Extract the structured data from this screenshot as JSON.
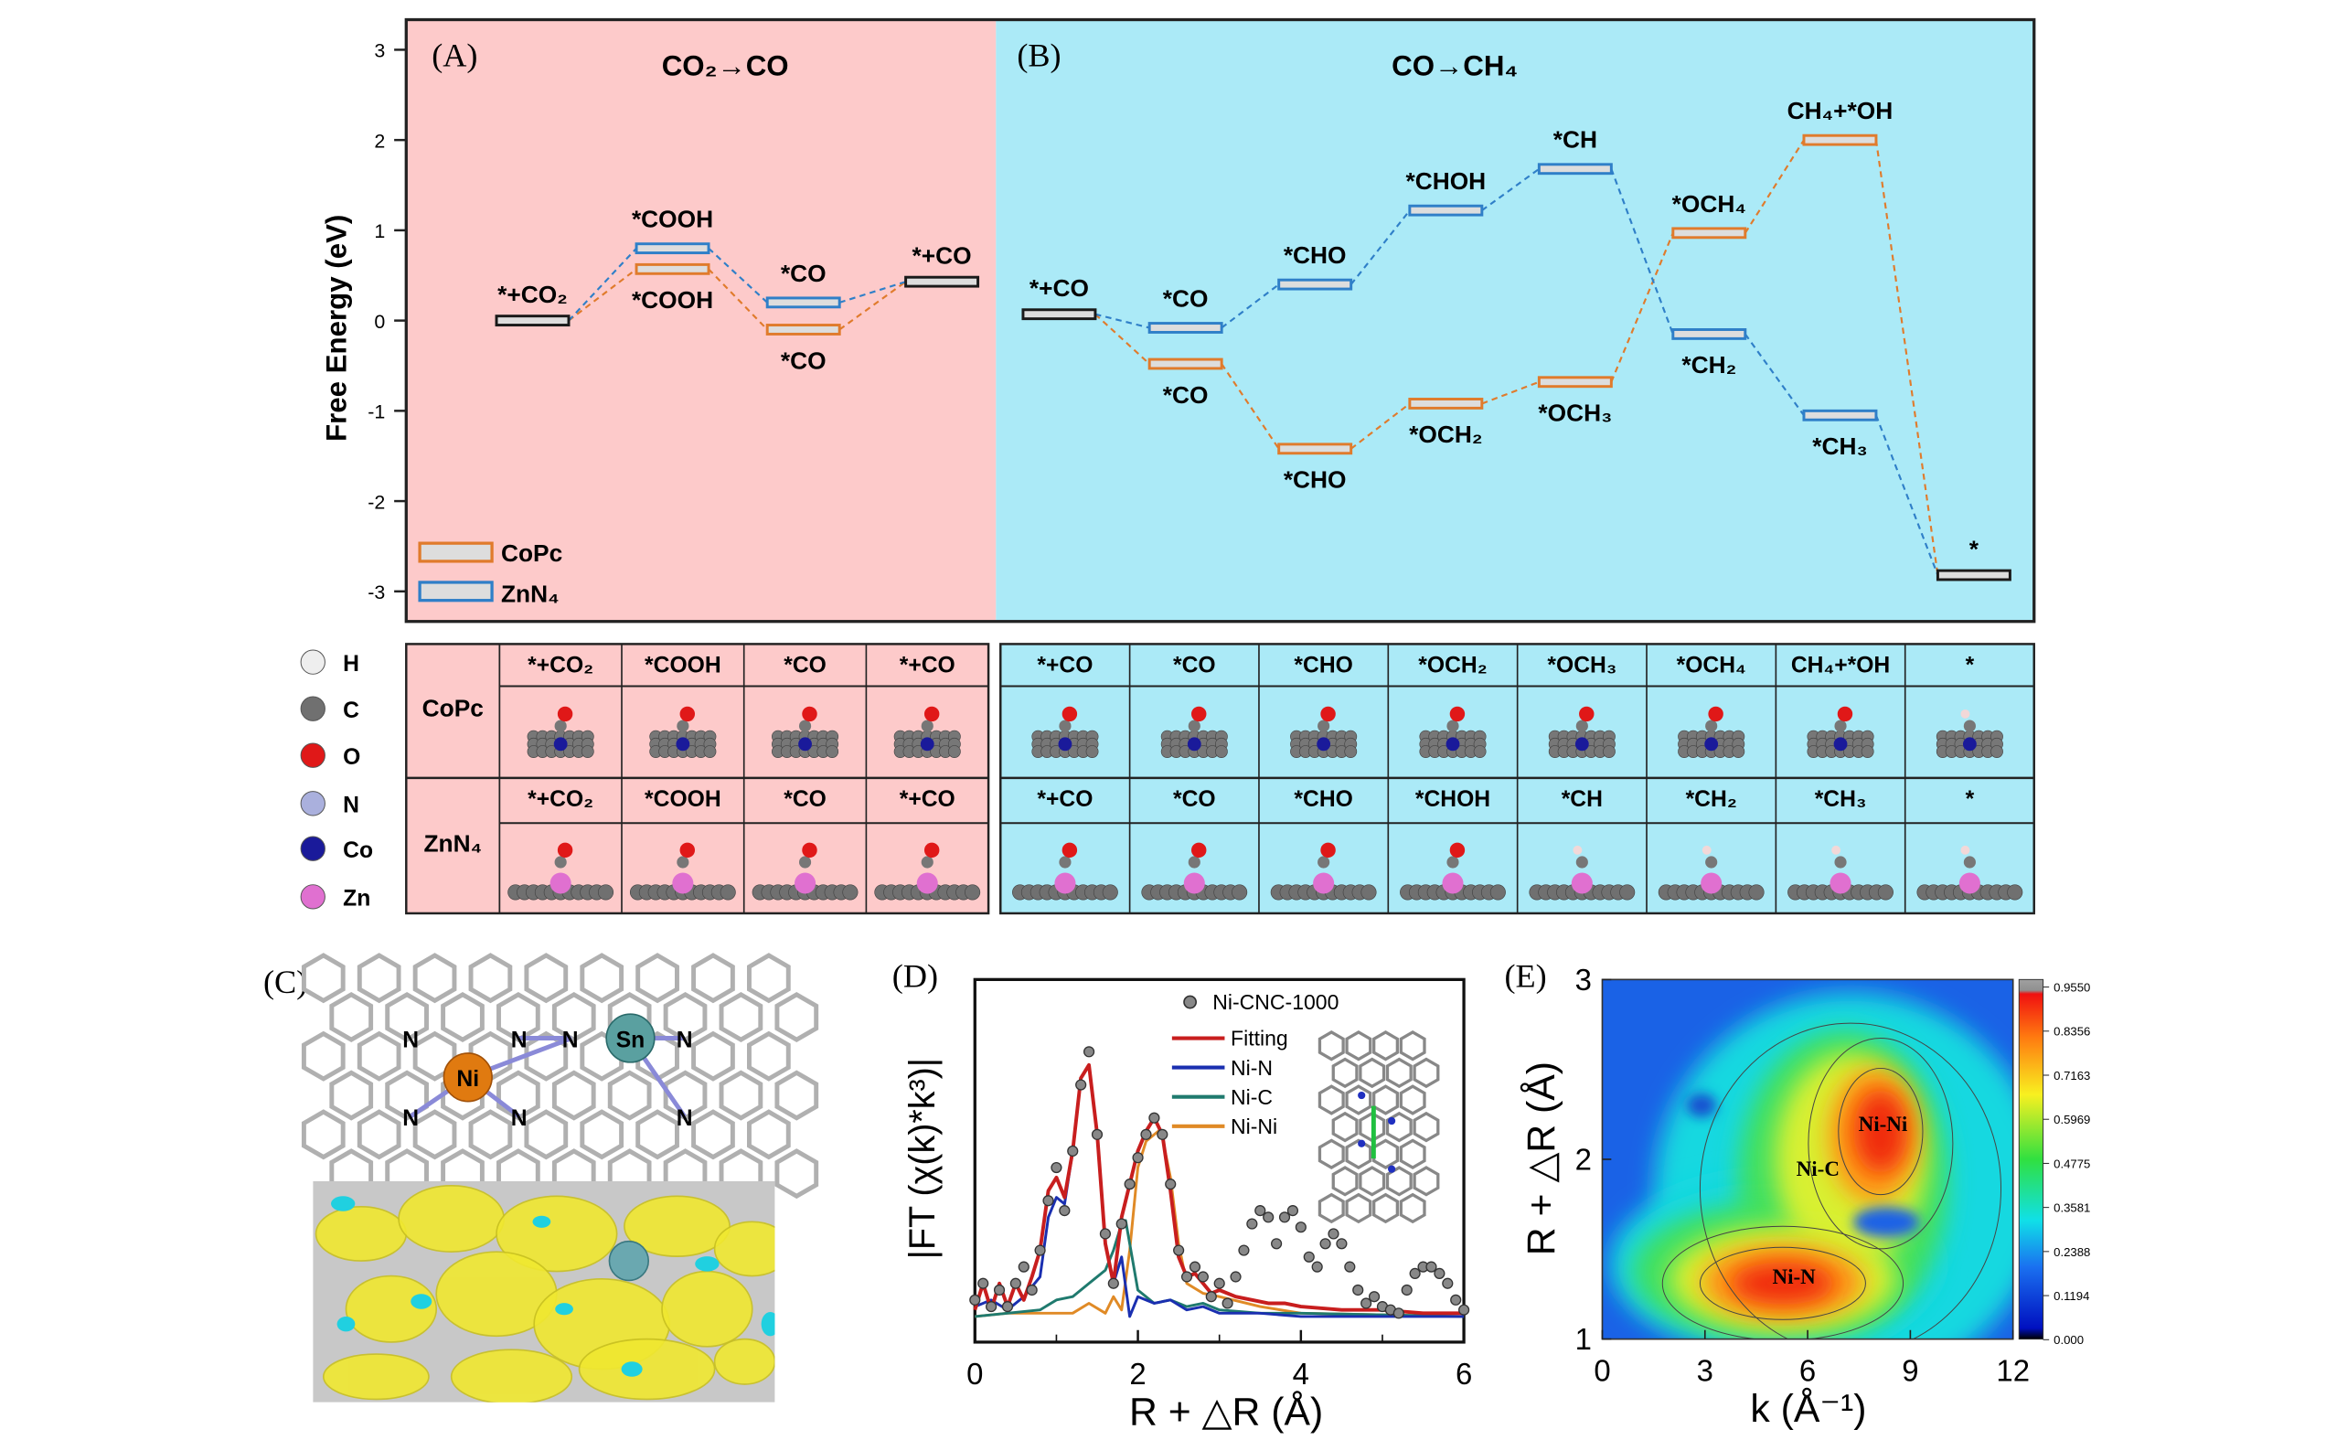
{
  "energy_diagram": {
    "ylabel": "Free Energy (eV)",
    "yticks": [
      -3,
      -2,
      -1,
      0,
      1,
      2,
      3
    ],
    "ylim": [
      -3.33,
      3.33
    ],
    "panels": [
      {
        "label": "(A)",
        "title": "CO₂→CO",
        "bg": "#fdcaca"
      },
      {
        "label": "(B)",
        "title": "CO→CH₄",
        "bg": "#abeaf7"
      }
    ],
    "legend": [
      {
        "name": "CoPc",
        "color": "#e07b2c"
      },
      {
        "name": "ZnN₄",
        "color": "#2f7fc8"
      }
    ],
    "shared_color": "#1a1a1a",
    "series": [
      {
        "name": "CoPc",
        "color": "#e07b2c",
        "labels": [
          "*+CO₂",
          "*COOH",
          "*CO",
          "*+CO",
          "*+CO",
          "*CO",
          "*CHO",
          "*OCH₂",
          "*OCH₃",
          "*OCH₄",
          "CH₄+*OH",
          "*"
        ],
        "values": [
          0.0,
          0.57,
          -0.1,
          0.43,
          0.07,
          -0.48,
          -1.42,
          -0.92,
          -0.68,
          0.97,
          2.0,
          -2.82
        ]
      },
      {
        "name": "ZnN₄",
        "color": "#2f7fc8",
        "labels": [
          "*+CO₂",
          "*COOH",
          "*CO",
          "*+CO",
          "*+CO",
          "*CO",
          "*CHO",
          "*CHOH",
          "*CH",
          "*CH₂",
          "*CH₃",
          "*"
        ],
        "values": [
          0.0,
          0.8,
          0.2,
          0.43,
          0.07,
          -0.08,
          0.4,
          1.22,
          1.68,
          -0.15,
          -1.05,
          -2.82
        ]
      }
    ]
  },
  "adsorption_table": {
    "atom_legend": [
      {
        "symbol": "H",
        "color": "#eeeeee"
      },
      {
        "symbol": "C",
        "color": "#707070"
      },
      {
        "symbol": "O",
        "color": "#e01818"
      },
      {
        "symbol": "N",
        "color": "#aab0dd"
      },
      {
        "symbol": "Co",
        "color": "#1a1a9a"
      },
      {
        "symbol": "Zn",
        "color": "#e070d0"
      }
    ],
    "left": {
      "rows": [
        {
          "catalyst": "CoPc",
          "steps": [
            "*+CO₂",
            "*COOH",
            "*CO",
            "*+CO"
          ]
        },
        {
          "catalyst": "ZnN₄",
          "steps": [
            "*+CO₂",
            "*COOH",
            "*CO",
            "*+CO"
          ]
        }
      ]
    },
    "right": {
      "rows": [
        {
          "steps": [
            "*+CO",
            "*CO",
            "*CHO",
            "*OCH₂",
            "*OCH₃",
            "*OCH₄",
            "CH₄+*OH",
            "*"
          ]
        },
        {
          "steps": [
            "*+CO",
            "*CO",
            "*CHO",
            "*CHOH",
            "*CH",
            "*CH₂",
            "*CH₃",
            "*"
          ]
        }
      ]
    }
  },
  "panel_c": {
    "label": "(C)",
    "atoms": {
      "ni": "Ni",
      "sn": "Sn",
      "n": "N"
    }
  },
  "chart_data": [
    {
      "type": "line",
      "panel": "D",
      "label": "(D)",
      "xlabel": "R + △R (Å)",
      "ylabel": "|FT (χ(k)*k³)|",
      "xlim": [
        0,
        6
      ],
      "xticks": [
        0,
        2,
        4,
        6
      ],
      "grid": false,
      "legend_position": "top-right",
      "experimental": {
        "name": "Ni-CNC-1000",
        "x": [
          0,
          0.1,
          0.2,
          0.3,
          0.4,
          0.5,
          0.6,
          0.7,
          0.8,
          0.9,
          1.0,
          1.1,
          1.2,
          1.3,
          1.4,
          1.5,
          1.6,
          1.7,
          1.8,
          1.9,
          2.0,
          2.1,
          2.2,
          2.3,
          2.4,
          2.5,
          2.6,
          2.7,
          2.8,
          2.9,
          3.0,
          3.1,
          3.2,
          3.3,
          3.4,
          3.5,
          3.6,
          3.7,
          3.8,
          3.9,
          4.0,
          4.1,
          4.2,
          4.3,
          4.4,
          4.5,
          4.6,
          4.7,
          4.8,
          4.9,
          5.0,
          5.1,
          5.2,
          5.3,
          5.4,
          5.5,
          5.6,
          5.7,
          5.8,
          5.9,
          6.0
        ],
        "y": [
          0.05,
          0.1,
          0.03,
          0.08,
          0.03,
          0.1,
          0.15,
          0.08,
          0.2,
          0.35,
          0.45,
          0.32,
          0.5,
          0.7,
          0.8,
          0.55,
          0.25,
          0.1,
          0.28,
          0.4,
          0.48,
          0.55,
          0.6,
          0.55,
          0.4,
          0.2,
          0.12,
          0.15,
          0.12,
          0.06,
          0.1,
          0.04,
          0.12,
          0.2,
          0.28,
          0.32,
          0.3,
          0.22,
          0.3,
          0.32,
          0.27,
          0.18,
          0.15,
          0.22,
          0.25,
          0.22,
          0.15,
          0.08,
          0.04,
          0.06,
          0.03,
          0.02,
          0.01,
          0.08,
          0.13,
          0.15,
          0.15,
          0.13,
          0.1,
          0.05,
          0.02
        ]
      },
      "series": [
        {
          "name": "Fitting",
          "color": "#c81e1e",
          "x": [
            0,
            0.1,
            0.2,
            0.3,
            0.4,
            0.5,
            0.6,
            0.7,
            0.8,
            0.9,
            1.0,
            1.1,
            1.2,
            1.3,
            1.4,
            1.5,
            1.6,
            1.7,
            1.8,
            1.9,
            2.0,
            2.1,
            2.2,
            2.3,
            2.4,
            2.5,
            2.6,
            2.7,
            2.8,
            2.9,
            3.0,
            3.2,
            3.4,
            3.6,
            3.8,
            4.0,
            4.5,
            5.0,
            5.5,
            6.0
          ],
          "y": [
            0.02,
            0.1,
            0.02,
            0.1,
            0.03,
            0.1,
            0.05,
            0.12,
            0.2,
            0.38,
            0.42,
            0.36,
            0.5,
            0.72,
            0.76,
            0.55,
            0.22,
            0.1,
            0.3,
            0.4,
            0.5,
            0.56,
            0.6,
            0.55,
            0.38,
            0.18,
            0.12,
            0.13,
            0.1,
            0.07,
            0.08,
            0.06,
            0.05,
            0.04,
            0.04,
            0.03,
            0.02,
            0.02,
            0.01,
            0.01
          ]
        },
        {
          "name": "Ni-N",
          "color": "#1a2fb0",
          "x": [
            0,
            0.2,
            0.4,
            0.6,
            0.8,
            0.9,
            1.0,
            1.1,
            1.2,
            1.3,
            1.4,
            1.5,
            1.6,
            1.7,
            1.8,
            1.9,
            2.0,
            2.2,
            2.4,
            2.6,
            2.8,
            3.0,
            3.5,
            4.0,
            6.0
          ],
          "y": [
            0.03,
            0.05,
            0.02,
            0.06,
            0.12,
            0.3,
            0.36,
            0.34,
            0.5,
            0.72,
            0.76,
            0.55,
            0.22,
            0.1,
            0.18,
            0.0,
            0.06,
            0.04,
            0.05,
            0.02,
            0.03,
            0.01,
            0.01,
            0.0,
            0.0
          ]
        },
        {
          "name": "Ni-C",
          "color": "#1f7a6e",
          "x": [
            0,
            0.4,
            0.8,
            1.0,
            1.2,
            1.4,
            1.6,
            1.7,
            1.8,
            1.85,
            1.9,
            2.0,
            2.2,
            2.4,
            2.6,
            2.8,
            3.0,
            3.5,
            4.0,
            6.0
          ],
          "y": [
            0.0,
            0.01,
            0.02,
            0.05,
            0.06,
            0.1,
            0.14,
            0.2,
            0.28,
            0.29,
            0.22,
            0.08,
            0.04,
            0.05,
            0.03,
            0.04,
            0.02,
            0.01,
            0.01,
            0.0
          ]
        },
        {
          "name": "Ni-Ni",
          "color": "#e08a26",
          "x": [
            0,
            0.4,
            0.8,
            1.2,
            1.4,
            1.6,
            1.7,
            1.8,
            1.9,
            2.0,
            2.1,
            2.2,
            2.25,
            2.3,
            2.4,
            2.5,
            2.6,
            2.8,
            3.0,
            3.5,
            4.0,
            6.0
          ],
          "y": [
            0.0,
            0.01,
            0.01,
            0.01,
            0.04,
            0.01,
            0.06,
            0.02,
            0.2,
            0.45,
            0.53,
            0.55,
            0.56,
            0.54,
            0.42,
            0.22,
            0.1,
            0.07,
            0.06,
            0.03,
            0.01,
            0.0
          ]
        }
      ]
    },
    {
      "type": "heatmap",
      "panel": "E",
      "label": "(E)",
      "xlabel": "k (Å⁻¹)",
      "ylabel": "R + △R (Å)",
      "xlim": [
        0,
        12
      ],
      "ylim": [
        1,
        3
      ],
      "xticks": [
        0,
        3,
        6,
        9,
        12
      ],
      "yticks": [
        1,
        2,
        3
      ],
      "colorbar": {
        "ticks": [
          "0.9550",
          "0.8356",
          "0.7163",
          "0.5969",
          "0.4775",
          "0.3581",
          "0.2388",
          "0.1194",
          "0.000"
        ],
        "range": [
          0,
          0.955
        ]
      },
      "features": [
        {
          "label": "Ni-N",
          "k": 5.6,
          "R": 1.35,
          "value": 0.955
        },
        {
          "label": "Ni-Ni",
          "k": 8.2,
          "R": 2.2,
          "value": 0.9
        },
        {
          "label": "Ni-C",
          "k": 6.3,
          "R": 1.95,
          "value": 0.75
        }
      ]
    }
  ]
}
